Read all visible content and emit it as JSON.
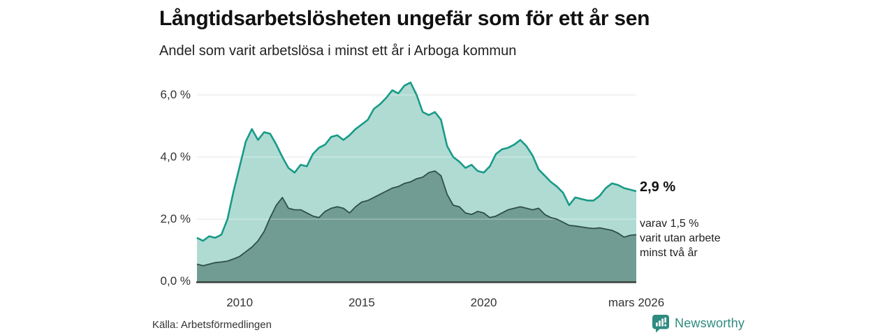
{
  "header": {
    "title": "Långtidsarbetslösheten ungefär som för ett år sen",
    "subtitle": "Andel som varit arbetslösa i minst ett år i Arboga kommun"
  },
  "annotations": {
    "latest_value": "2,9 %",
    "secondary": [
      "varav 1,5 %",
      "varit utan arbete",
      "minst två år"
    ]
  },
  "footer": {
    "source": "Källa: Arbetsförmedlingen",
    "brand": "Newsworthy"
  },
  "colors": {
    "area_one_year_fill": "#b0dbd3",
    "area_one_year_stroke": "#189a88",
    "area_two_year_fill": "#719c94",
    "area_two_year_stroke": "#2f4f49",
    "gridline": "#e0e0e0",
    "axis_line": "#3c4340",
    "brand_teal": "#2e8b80"
  },
  "chart_data": {
    "type": "area",
    "title": "Långtidsarbetslösheten ungefär som för ett år sen",
    "subtitle": "Andel som varit arbetslösa i minst ett år i Arboga kommun",
    "xlabel": "",
    "ylabel": "",
    "xlim": [
      2008.25,
      2026.25
    ],
    "ylim": [
      0,
      6.5
    ],
    "grid": "horizontal",
    "legend": "none",
    "x": [
      2008.25,
      2008.5,
      2008.75,
      2009,
      2009.25,
      2009.5,
      2009.75,
      2010,
      2010.25,
      2010.5,
      2010.75,
      2011,
      2011.25,
      2011.5,
      2011.75,
      2012,
      2012.25,
      2012.5,
      2012.75,
      2013,
      2013.25,
      2013.5,
      2013.75,
      2014,
      2014.25,
      2014.5,
      2014.75,
      2015,
      2015.25,
      2015.5,
      2015.75,
      2016,
      2016.25,
      2016.5,
      2016.75,
      2017,
      2017.25,
      2017.5,
      2017.75,
      2018,
      2018.25,
      2018.5,
      2018.75,
      2019,
      2019.25,
      2019.5,
      2019.75,
      2020,
      2020.25,
      2020.5,
      2020.75,
      2021,
      2021.25,
      2021.5,
      2021.75,
      2022,
      2022.25,
      2022.5,
      2022.75,
      2023,
      2023.25,
      2023.5,
      2023.75,
      2024,
      2024.25,
      2024.5,
      2024.75,
      2025,
      2025.25,
      2025.5,
      2025.75,
      2026,
      2026.25
    ],
    "series": [
      {
        "name": "Andel arbetslösa minst ett år",
        "latest_label": "2,9 %",
        "values": [
          1.4,
          1.3,
          1.45,
          1.4,
          1.5,
          2.0,
          2.9,
          3.7,
          4.5,
          4.9,
          4.55,
          4.8,
          4.75,
          4.4,
          4.0,
          3.65,
          3.5,
          3.75,
          3.7,
          4.1,
          4.3,
          4.4,
          4.65,
          4.7,
          4.55,
          4.7,
          4.9,
          5.05,
          5.2,
          5.55,
          5.7,
          5.9,
          6.15,
          6.05,
          6.3,
          6.4,
          6.0,
          5.45,
          5.35,
          5.45,
          5.2,
          4.35,
          4.0,
          3.85,
          3.65,
          3.75,
          3.55,
          3.5,
          3.7,
          4.1,
          4.25,
          4.3,
          4.4,
          4.55,
          4.35,
          4.05,
          3.6,
          3.4,
          3.2,
          3.05,
          2.85,
          2.45,
          2.7,
          2.65,
          2.6,
          2.6,
          2.75,
          3.0,
          3.15,
          3.1,
          3.0,
          2.95,
          2.9
        ]
      },
      {
        "name": "varav utan arbete minst två år",
        "latest_label": "1,5 %",
        "values": [
          0.55,
          0.5,
          0.55,
          0.6,
          0.62,
          0.65,
          0.72,
          0.8,
          0.95,
          1.1,
          1.3,
          1.6,
          2.05,
          2.45,
          2.7,
          2.35,
          2.3,
          2.3,
          2.2,
          2.1,
          2.05,
          2.25,
          2.35,
          2.4,
          2.35,
          2.2,
          2.4,
          2.55,
          2.6,
          2.7,
          2.8,
          2.9,
          3.0,
          3.05,
          3.15,
          3.2,
          3.3,
          3.35,
          3.5,
          3.55,
          3.4,
          2.8,
          2.45,
          2.4,
          2.2,
          2.15,
          2.25,
          2.2,
          2.05,
          2.1,
          2.2,
          2.3,
          2.35,
          2.4,
          2.35,
          2.3,
          2.35,
          2.15,
          2.05,
          2.0,
          1.9,
          1.8,
          1.78,
          1.75,
          1.72,
          1.7,
          1.72,
          1.68,
          1.64,
          1.55,
          1.42,
          1.48,
          1.5
        ]
      }
    ],
    "y_ticks": [
      {
        "value": 0,
        "label": "0,0 %"
      },
      {
        "value": 2,
        "label": "2,0 %"
      },
      {
        "value": 4,
        "label": "4,0 %"
      },
      {
        "value": 6,
        "label": "6,0 %"
      }
    ],
    "x_ticks": [
      {
        "value": 2010,
        "label": "2010"
      },
      {
        "value": 2015,
        "label": "2015"
      },
      {
        "value": 2020,
        "label": "2020"
      },
      {
        "value": 2026.25,
        "label": "mars 2026"
      }
    ]
  }
}
